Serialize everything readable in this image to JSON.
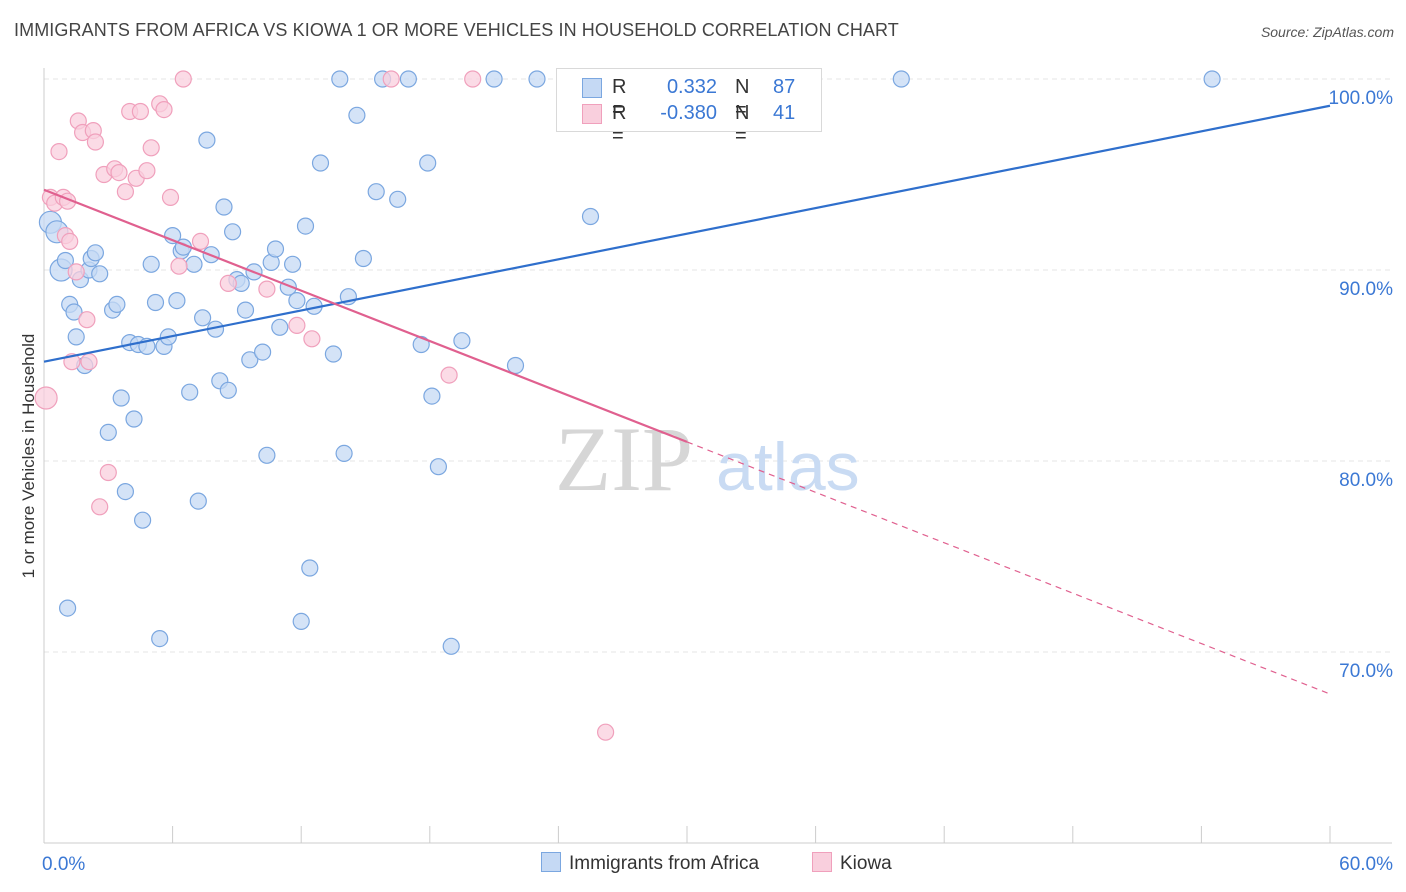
{
  "title": "IMMIGRANTS FROM AFRICA VS KIOWA 1 OR MORE VEHICLES IN HOUSEHOLD CORRELATION CHART",
  "source": "Source: ZipAtlas.com",
  "watermark": {
    "zip": "ZIP",
    "atlas": "atlas"
  },
  "legend": {
    "rows": [
      {
        "r_label": "R =",
        "r_value": "0.332",
        "n_label": "N =",
        "n_value": "87"
      },
      {
        "r_label": "R =",
        "r_value": "-0.380",
        "n_label": "N =",
        "n_value": "41"
      }
    ]
  },
  "chart_data": {
    "type": "scatter",
    "title": "IMMIGRANTS FROM AFRICA VS KIOWA 1 OR MORE VEHICLES IN HOUSEHOLD CORRELATION CHART",
    "xlabel": "",
    "ylabel": "1 or more Vehicles in Household",
    "xlim": [
      0,
      60
    ],
    "ylim": [
      60,
      101.5
    ],
    "x_tick_labels": [
      {
        "value": 0,
        "label": "0.0%"
      },
      {
        "value": 60,
        "label": "60.0%"
      }
    ],
    "y_tick_labels": [
      {
        "value": 70,
        "label": "70.0%"
      },
      {
        "value": 80,
        "label": "80.0%"
      },
      {
        "value": 90,
        "label": "90.0%"
      },
      {
        "value": 100,
        "label": "100.0%"
      }
    ],
    "grid": true,
    "legend_position": "bottom",
    "series": [
      {
        "name": "Immigrants from Africa",
        "color": "#7ba7e0",
        "fill": "#c5d9f4",
        "trend": {
          "x": [
            0,
            60
          ],
          "y": [
            85.2,
            98.6
          ],
          "color": "#2f6fcc"
        },
        "points": [
          [
            0.3,
            92.5
          ],
          [
            0.6,
            92.0
          ],
          [
            0.8,
            90.0
          ],
          [
            1.0,
            90.5
          ],
          [
            1.1,
            72.3
          ],
          [
            1.2,
            88.2
          ],
          [
            1.4,
            87.8
          ],
          [
            1.5,
            86.5
          ],
          [
            1.7,
            89.5
          ],
          [
            1.9,
            85.0
          ],
          [
            2.1,
            90.0
          ],
          [
            2.2,
            90.6
          ],
          [
            2.4,
            90.9
          ],
          [
            2.6,
            89.8
          ],
          [
            3.0,
            81.5
          ],
          [
            3.2,
            87.9
          ],
          [
            3.4,
            88.2
          ],
          [
            3.6,
            83.3
          ],
          [
            3.8,
            78.4
          ],
          [
            4.0,
            86.2
          ],
          [
            4.2,
            82.2
          ],
          [
            4.4,
            86.1
          ],
          [
            4.6,
            76.9
          ],
          [
            4.8,
            86.0
          ],
          [
            5.0,
            90.3
          ],
          [
            5.2,
            88.3
          ],
          [
            5.4,
            70.7
          ],
          [
            5.6,
            86.0
          ],
          [
            5.8,
            86.5
          ],
          [
            6.0,
            91.8
          ],
          [
            6.2,
            88.4
          ],
          [
            6.4,
            91.0
          ],
          [
            6.5,
            91.2
          ],
          [
            6.8,
            83.6
          ],
          [
            7.0,
            90.3
          ],
          [
            7.2,
            77.9
          ],
          [
            7.4,
            87.5
          ],
          [
            7.6,
            96.8
          ],
          [
            7.8,
            90.8
          ],
          [
            8.0,
            86.9
          ],
          [
            8.2,
            84.2
          ],
          [
            8.4,
            93.3
          ],
          [
            8.6,
            83.7
          ],
          [
            8.8,
            92.0
          ],
          [
            9.0,
            89.5
          ],
          [
            9.2,
            89.3
          ],
          [
            9.4,
            87.9
          ],
          [
            9.6,
            85.3
          ],
          [
            9.8,
            89.9
          ],
          [
            10.2,
            85.7
          ],
          [
            10.4,
            80.3
          ],
          [
            10.6,
            90.4
          ],
          [
            10.8,
            91.1
          ],
          [
            11.0,
            87.0
          ],
          [
            11.4,
            89.1
          ],
          [
            11.6,
            90.3
          ],
          [
            11.8,
            88.4
          ],
          [
            12.0,
            71.6
          ],
          [
            12.2,
            92.3
          ],
          [
            12.4,
            74.4
          ],
          [
            12.6,
            88.1
          ],
          [
            12.9,
            95.6
          ],
          [
            13.5,
            85.6
          ],
          [
            13.8,
            100.0
          ],
          [
            14.0,
            80.4
          ],
          [
            14.2,
            88.6
          ],
          [
            14.6,
            98.1
          ],
          [
            14.9,
            90.6
          ],
          [
            15.5,
            94.1
          ],
          [
            15.8,
            100.0
          ],
          [
            16.5,
            93.7
          ],
          [
            17.0,
            100.0
          ],
          [
            17.6,
            86.1
          ],
          [
            17.9,
            95.6
          ],
          [
            18.1,
            83.4
          ],
          [
            18.4,
            79.7
          ],
          [
            19.0,
            70.3
          ],
          [
            19.5,
            86.3
          ],
          [
            21.0,
            100.0
          ],
          [
            22.0,
            85.0
          ],
          [
            23.0,
            100.0
          ],
          [
            25.5,
            92.8
          ],
          [
            29.0,
            100.0
          ],
          [
            30.0,
            100.0
          ],
          [
            35.0,
            100.0
          ],
          [
            40.0,
            100.0
          ],
          [
            54.5,
            100.0
          ]
        ]
      },
      {
        "name": "Kiowa",
        "color": "#f0a0bc",
        "fill": "#f9cfdd",
        "trend": {
          "x": [
            0,
            30
          ],
          "y": [
            94.2,
            81.0
          ],
          "dash_to": {
            "x": 60,
            "y": 67.8
          },
          "color": "#e0608f"
        },
        "points": [
          [
            0.1,
            83.3
          ],
          [
            0.3,
            93.8
          ],
          [
            0.5,
            93.5
          ],
          [
            0.7,
            96.2
          ],
          [
            0.9,
            93.8
          ],
          [
            1.0,
            91.8
          ],
          [
            1.1,
            93.6
          ],
          [
            1.2,
            91.5
          ],
          [
            1.3,
            85.2
          ],
          [
            1.5,
            89.9
          ],
          [
            1.6,
            97.8
          ],
          [
            1.8,
            97.2
          ],
          [
            2.0,
            87.4
          ],
          [
            2.1,
            85.2
          ],
          [
            2.3,
            97.3
          ],
          [
            2.4,
            96.7
          ],
          [
            2.6,
            77.6
          ],
          [
            2.8,
            95.0
          ],
          [
            3.0,
            79.4
          ],
          [
            3.3,
            95.3
          ],
          [
            3.5,
            95.1
          ],
          [
            3.8,
            94.1
          ],
          [
            4.0,
            98.3
          ],
          [
            4.3,
            94.8
          ],
          [
            4.5,
            98.3
          ],
          [
            4.8,
            95.2
          ],
          [
            5.0,
            96.4
          ],
          [
            5.4,
            98.7
          ],
          [
            5.6,
            98.4
          ],
          [
            5.9,
            93.8
          ],
          [
            6.3,
            90.2
          ],
          [
            6.5,
            100.0
          ],
          [
            7.3,
            91.5
          ],
          [
            8.6,
            89.3
          ],
          [
            10.4,
            89.0
          ],
          [
            11.8,
            87.1
          ],
          [
            12.5,
            86.4
          ],
          [
            16.2,
            100.0
          ],
          [
            18.9,
            84.5
          ],
          [
            26.2,
            65.8
          ],
          [
            20.0,
            100.0
          ]
        ]
      }
    ]
  }
}
